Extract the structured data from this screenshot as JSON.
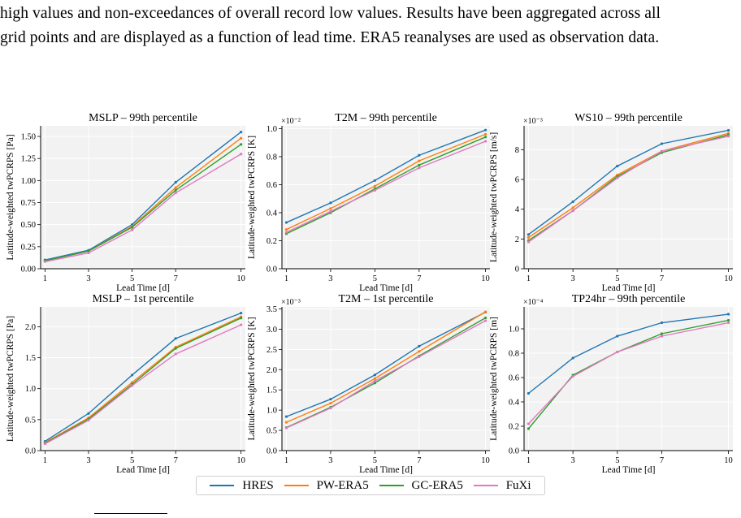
{
  "caption": {
    "lines": [
      "high values and non-exceedances of overall record low values. Results have been aggregated across all",
      "grid points and are displayed as a function of lead time. ERA5 reanalyses are used as observation data."
    ]
  },
  "colors": {
    "HRES": "#1f77b4",
    "PW-ERA5": "#ff7f0e",
    "GC-ERA5": "#2ca02c",
    "FuXi": "#e377c2"
  },
  "legend": {
    "items": [
      "HRES",
      "PW-ERA5",
      "GC-ERA5",
      "FuXi"
    ]
  },
  "chart_data": [
    {
      "type": "line",
      "title": "MSLP – 99th percentile",
      "xlabel": "Lead Time [d]",
      "ylabel": "Latitude-weighted twPCRPS [Pa]",
      "offset_label": "",
      "x": [
        1,
        3,
        5,
        7,
        10
      ],
      "ylim": [
        0,
        1.62
      ],
      "yticks": [
        0,
        0.25,
        0.5,
        0.75,
        1.0,
        1.25,
        1.5
      ],
      "ytick_labels": [
        "0.00",
        "0.25",
        "0.50",
        "0.75",
        "1.00",
        "1.25",
        "1.50"
      ],
      "grid": true,
      "series": [
        {
          "name": "HRES",
          "values": [
            0.1,
            0.21,
            0.5,
            0.98,
            1.55
          ]
        },
        {
          "name": "PW-ERA5",
          "values": [
            0.09,
            0.2,
            0.48,
            0.92,
            1.48
          ]
        },
        {
          "name": "GC-ERA5",
          "values": [
            0.09,
            0.2,
            0.47,
            0.89,
            1.41
          ]
        },
        {
          "name": "FuXi",
          "values": [
            0.08,
            0.18,
            0.44,
            0.86,
            1.3
          ]
        }
      ]
    },
    {
      "type": "line",
      "title": "T2M – 99th percentile",
      "xlabel": "Lead Time [d]",
      "ylabel": "Latitude-weighted twPCRPS [K]",
      "offset_label": "×10⁻²",
      "x": [
        1,
        3,
        5,
        7,
        10
      ],
      "ylim": [
        0,
        1.02
      ],
      "yticks": [
        0,
        0.2,
        0.4,
        0.6,
        0.8,
        1.0
      ],
      "ytick_labels": [
        "0.0",
        "0.2",
        "0.4",
        "0.6",
        "0.8",
        "1.0"
      ],
      "grid": true,
      "series": [
        {
          "name": "HRES",
          "values": [
            0.33,
            0.47,
            0.63,
            0.81,
            0.99
          ]
        },
        {
          "name": "PW-ERA5",
          "values": [
            0.28,
            0.43,
            0.59,
            0.77,
            0.96
          ]
        },
        {
          "name": "GC-ERA5",
          "values": [
            0.25,
            0.4,
            0.57,
            0.74,
            0.94
          ]
        },
        {
          "name": "FuXi",
          "values": [
            0.26,
            0.41,
            0.56,
            0.72,
            0.91
          ]
        }
      ]
    },
    {
      "type": "line",
      "title": "WS10 – 99th percentile",
      "xlabel": "Lead Time [d]",
      "ylabel": "Latitude-weighted twPCRPS [m/s]",
      "offset_label": "×10⁻³",
      "x": [
        1,
        3,
        5,
        7,
        10
      ],
      "ylim": [
        0,
        9.6
      ],
      "yticks": [
        0,
        2,
        4,
        6,
        8
      ],
      "ytick_labels": [
        "0",
        "2",
        "4",
        "6",
        "8"
      ],
      "grid": true,
      "series": [
        {
          "name": "HRES",
          "values": [
            2.3,
            4.5,
            6.9,
            8.4,
            9.3
          ]
        },
        {
          "name": "PW-ERA5",
          "values": [
            2.1,
            4.1,
            6.3,
            7.9,
            9.1
          ]
        },
        {
          "name": "GC-ERA5",
          "values": [
            1.9,
            3.9,
            6.2,
            7.8,
            9.0
          ]
        },
        {
          "name": "FuXi",
          "values": [
            1.8,
            3.9,
            6.1,
            7.9,
            8.9
          ]
        }
      ]
    },
    {
      "type": "line",
      "title": "MSLP – 1st percentile",
      "xlabel": "Lead Time [d]",
      "ylabel": "Latitude-weighted twPCRPS [Pa]",
      "offset_label": "",
      "x": [
        1,
        3,
        5,
        7,
        10
      ],
      "ylim": [
        0,
        2.32
      ],
      "yticks": [
        0,
        0.5,
        1.0,
        1.5,
        2.0
      ],
      "ytick_labels": [
        "0.0",
        "0.5",
        "1.0",
        "1.5",
        "2.0"
      ],
      "grid": true,
      "series": [
        {
          "name": "HRES",
          "values": [
            0.15,
            0.6,
            1.22,
            1.81,
            2.22
          ]
        },
        {
          "name": "PW-ERA5",
          "values": [
            0.13,
            0.53,
            1.1,
            1.67,
            2.16
          ]
        },
        {
          "name": "GC-ERA5",
          "values": [
            0.12,
            0.51,
            1.07,
            1.65,
            2.14
          ]
        },
        {
          "name": "FuXi",
          "values": [
            0.11,
            0.49,
            1.05,
            1.56,
            2.03
          ]
        }
      ]
    },
    {
      "type": "line",
      "title": "T2M – 1st percentile",
      "xlabel": "Lead Time [d]",
      "ylabel": "Latitude-weighted twPCRPS [K]",
      "offset_label": "×10⁻³",
      "x": [
        1,
        3,
        5,
        7,
        10
      ],
      "ylim": [
        0,
        3.55
      ],
      "yticks": [
        0,
        0.5,
        1.0,
        1.5,
        2.0,
        2.5,
        3.0,
        3.5
      ],
      "ytick_labels": [
        "0.0",
        "0.5",
        "1.0",
        "1.5",
        "2.0",
        "2.5",
        "3.0",
        "3.5"
      ],
      "grid": true,
      "series": [
        {
          "name": "HRES",
          "values": [
            0.84,
            1.27,
            1.87,
            2.58,
            3.42
          ]
        },
        {
          "name": "PW-ERA5",
          "values": [
            0.7,
            1.17,
            1.78,
            2.45,
            3.43
          ]
        },
        {
          "name": "GC-ERA5",
          "values": [
            0.57,
            1.07,
            1.67,
            2.34,
            3.28
          ]
        },
        {
          "name": "FuXi",
          "values": [
            0.56,
            1.05,
            1.72,
            2.32,
            3.21
          ]
        }
      ]
    },
    {
      "type": "line",
      "title": "TP24hr – 99th percentile",
      "xlabel": "Lead Time [d]",
      "ylabel": "Latitude-weighted twPCRPS [m]",
      "offset_label": "×10⁻⁴",
      "x": [
        1,
        3,
        5,
        7,
        10
      ],
      "ylim": [
        0,
        1.18
      ],
      "yticks": [
        0,
        0.2,
        0.4,
        0.6,
        0.8,
        1.0
      ],
      "ytick_labels": [
        "0.0",
        "0.2",
        "0.4",
        "0.6",
        "0.8",
        "1.0"
      ],
      "grid": true,
      "series": [
        {
          "name": "HRES",
          "values": [
            0.47,
            0.76,
            0.94,
            1.05,
            1.12
          ]
        },
        {
          "name": "GC-ERA5",
          "values": [
            0.18,
            0.62,
            0.81,
            0.96,
            1.07
          ]
        },
        {
          "name": "FuXi",
          "values": [
            0.22,
            0.61,
            0.81,
            0.94,
            1.05
          ]
        }
      ]
    }
  ]
}
